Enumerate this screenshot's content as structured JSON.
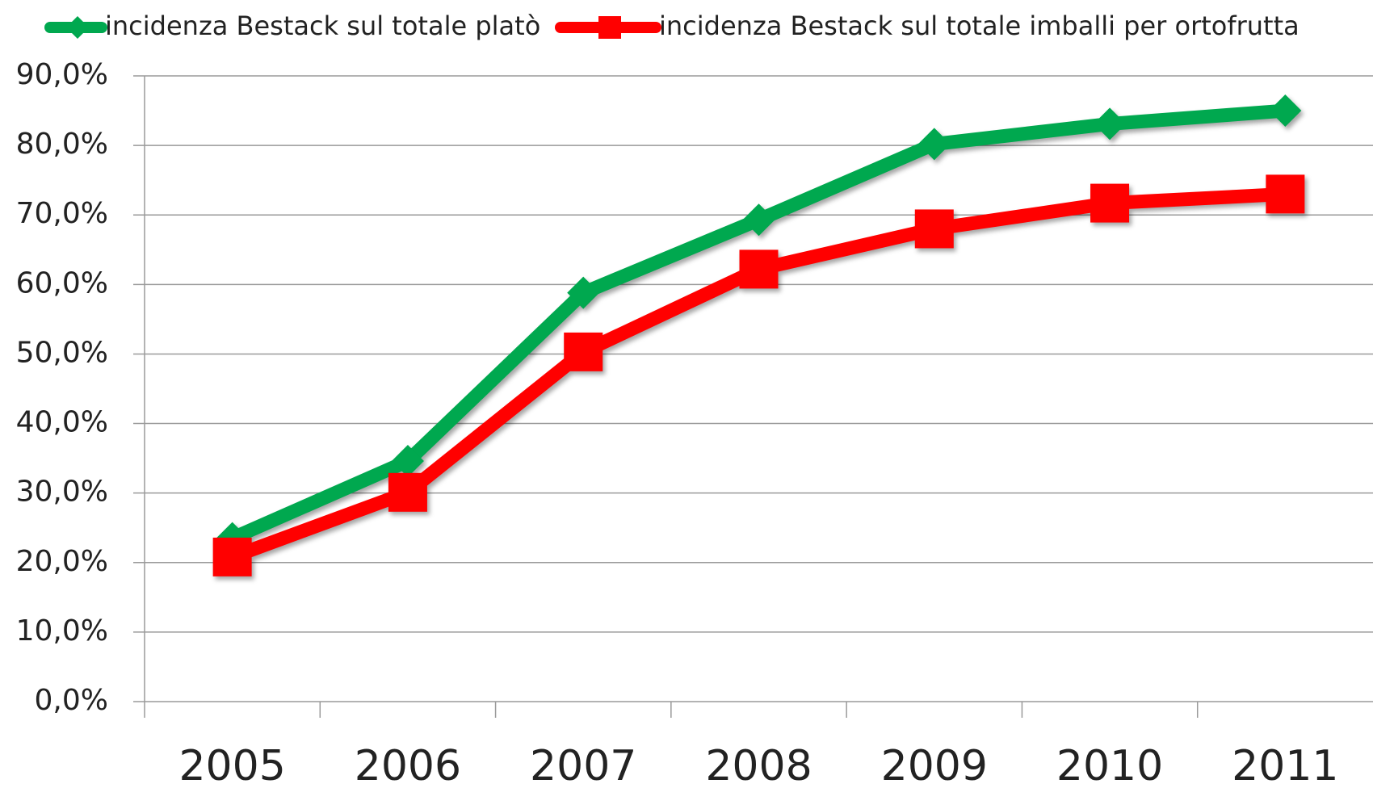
{
  "chart_data": {
    "type": "line",
    "categories": [
      "2005",
      "2006",
      "2007",
      "2008",
      "2009",
      "2010",
      "2011"
    ],
    "series": [
      {
        "name": "incidenza Bestack sul totale platò",
        "color": "#00a84f",
        "marker": "diamond",
        "values": [
          23.5,
          34.6,
          58.8,
          69.3,
          80.2,
          83.1,
          85.0
        ]
      },
      {
        "name": "incidenza Bestack sul totale imballi per ortofrutta",
        "color": "#ff0000",
        "marker": "square",
        "values": [
          20.8,
          30.1,
          50.3,
          62.2,
          68.0,
          71.7,
          73.0
        ]
      }
    ],
    "ylim": [
      0,
      90
    ],
    "yticks": [
      {
        "value": 0,
        "label": "0,0%"
      },
      {
        "value": 10,
        "label": "10,0%"
      },
      {
        "value": 20,
        "label": "20,0%"
      },
      {
        "value": 30,
        "label": "30,0%"
      },
      {
        "value": 40,
        "label": "40,0%"
      },
      {
        "value": 50,
        "label": "50,0%"
      },
      {
        "value": 60,
        "label": "60,0%"
      },
      {
        "value": 70,
        "label": "70,0%"
      },
      {
        "value": 80,
        "label": "80,0%"
      },
      {
        "value": 90,
        "label": "90,0%"
      }
    ],
    "grid": true,
    "legend": "top"
  }
}
